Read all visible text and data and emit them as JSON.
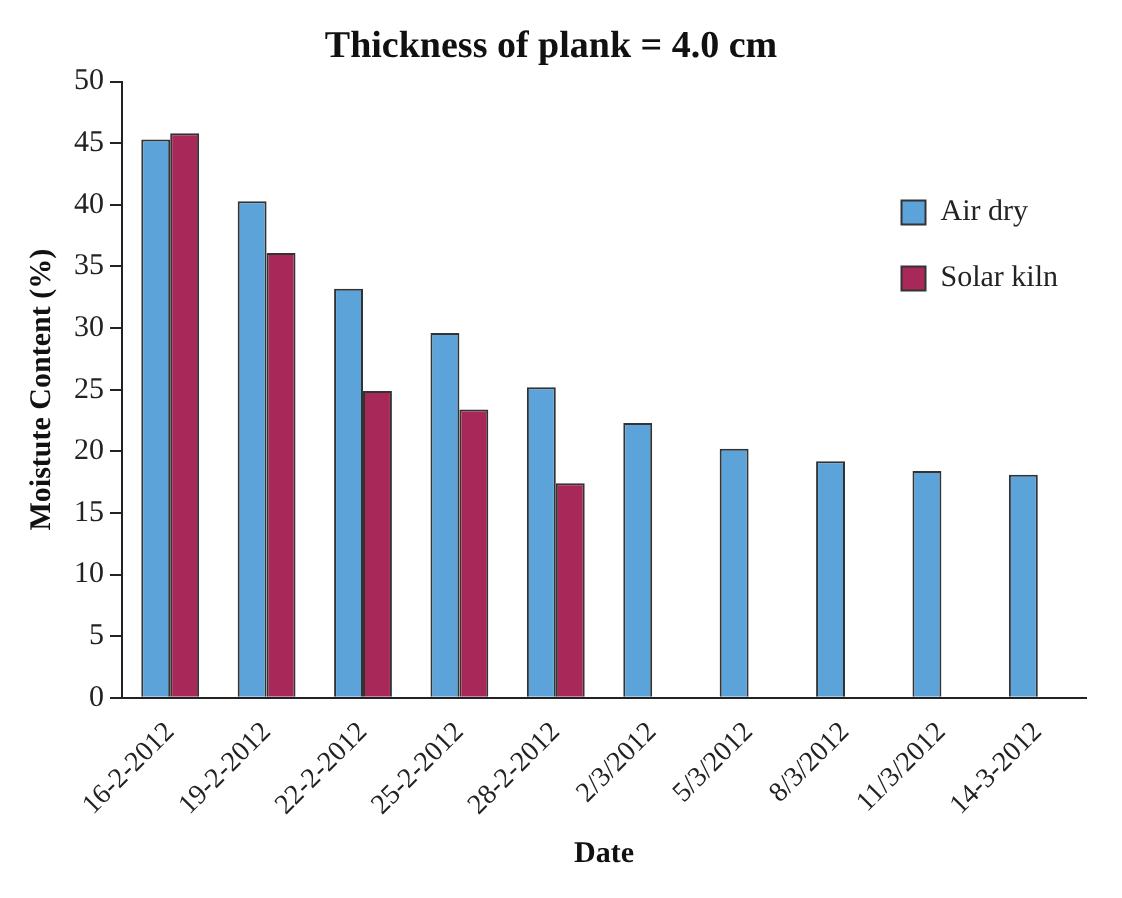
{
  "chart_data": {
    "type": "bar",
    "title": "Thickness of plank = 4.0 cm",
    "xlabel": "Date",
    "ylabel": "Moistute Content (%)",
    "categories": [
      "16-2-2012",
      "19-2-2012",
      "22-2-2012",
      "25-2-2012",
      "28-2-2012",
      "2/3/2012",
      "5/3/2012",
      "8/3/2012",
      "11/3/2012",
      "14-3-2012"
    ],
    "series": [
      {
        "name": "Air dry",
        "color": "#5ba3d9",
        "values": [
          45.3,
          40.3,
          33.2,
          29.6,
          25.2,
          22.3,
          20.2,
          19.2,
          18.4,
          18.1
        ]
      },
      {
        "name": "Solar kiln",
        "color": "#a8285a",
        "values": [
          45.8,
          36.1,
          24.9,
          23.4,
          17.4,
          null,
          null,
          null,
          null,
          null
        ]
      }
    ],
    "ylim": [
      0,
      50
    ],
    "yticks": [
      0,
      5,
      10,
      15,
      20,
      25,
      30,
      35,
      40,
      45,
      50
    ],
    "grid": false,
    "legend": "top right"
  }
}
